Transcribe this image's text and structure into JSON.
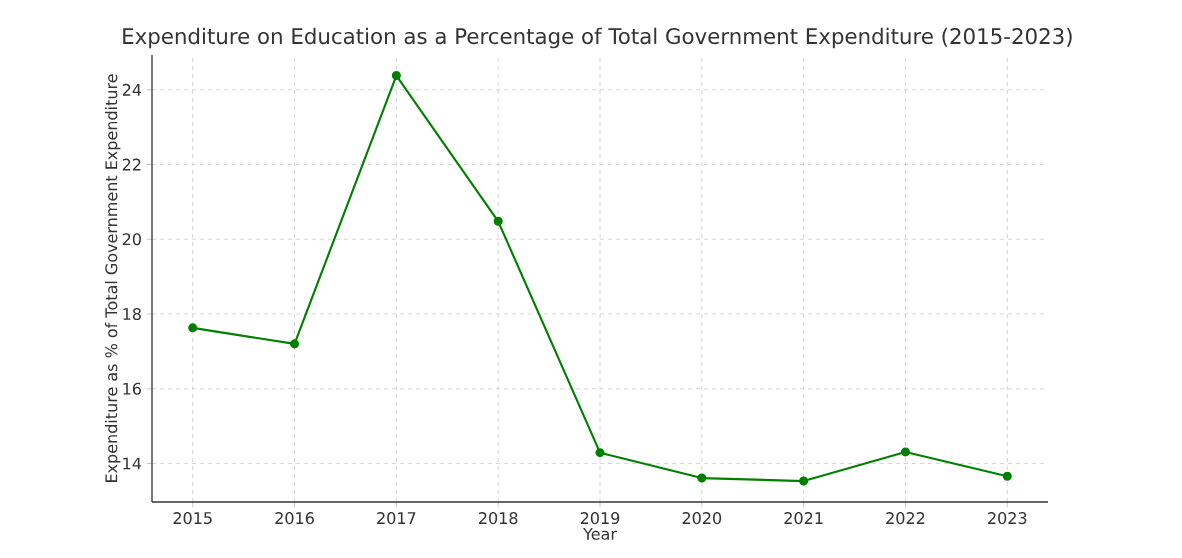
{
  "chart_data": {
    "type": "line",
    "title": "Expenditure on Education as a Percentage of Total Government Expenditure (2015-2023)",
    "xlabel": "Year",
    "ylabel": "Expenditure as % of Total Government Expenditure",
    "x": [
      2015,
      2016,
      2017,
      2018,
      2019,
      2020,
      2021,
      2022,
      2023
    ],
    "series": [
      {
        "color": "#008000",
        "values": [
          17.63,
          17.2,
          24.38,
          20.48,
          14.29,
          13.61,
          13.53,
          14.31,
          13.66
        ]
      }
    ],
    "xlim": [
      2014.6,
      2023.4
    ],
    "xticks": [
      2015,
      2016,
      2017,
      2018,
      2019,
      2020,
      2021,
      2022,
      2023
    ],
    "ylim": [
      12.97,
      24.93
    ],
    "yticks": [
      14,
      16,
      18,
      20,
      22,
      24
    ],
    "grid": true,
    "marker": "circle",
    "line_style": "solid"
  }
}
